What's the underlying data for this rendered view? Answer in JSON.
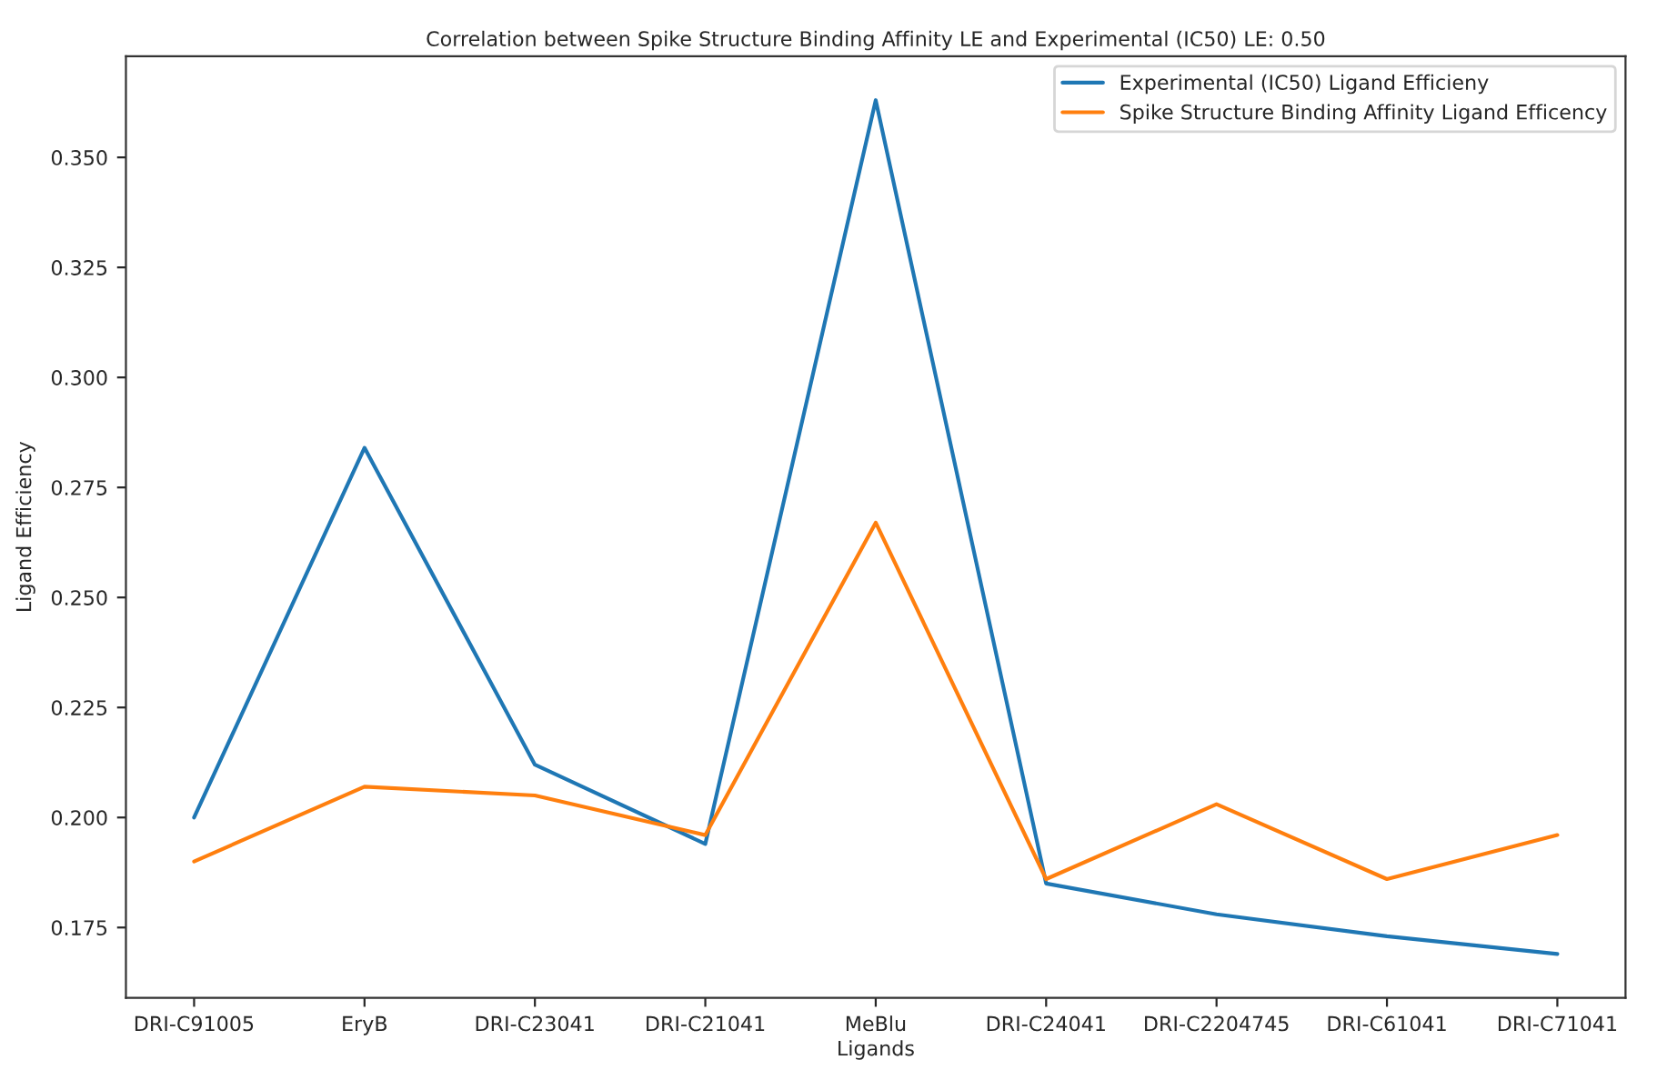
{
  "chart_data": {
    "type": "line",
    "title": "Correlation between Spike Structure Binding Affinity LE and Experimental (IC50) LE: 0.50",
    "xlabel": "Ligands",
    "ylabel": "Ligand Efficiency",
    "categories": [
      "DRI-C91005",
      "EryB",
      "DRI-C23041",
      "DRI-C21041",
      "MeBlu",
      "DRI-C24041",
      "DRI-C2204745",
      "DRI-C61041",
      "DRI-C71041"
    ],
    "series": [
      {
        "name": "Experimental (IC50) Ligand Efficieny",
        "color": "#1f77b4",
        "values": [
          0.2,
          0.284,
          0.212,
          0.194,
          0.363,
          0.185,
          0.178,
          0.173,
          0.169
        ]
      },
      {
        "name": "Spike Structure Binding Affinity Ligand Efficency",
        "color": "#ff7f0e",
        "values": [
          0.19,
          0.207,
          0.205,
          0.196,
          0.267,
          0.186,
          0.203,
          0.186,
          0.196
        ]
      }
    ],
    "ylim": [
      0.159,
      0.373
    ],
    "yticks": [
      0.175,
      {
        "value": 0.2,
        "label": "0.200"
      },
      0.225,
      {
        "value": 0.25,
        "label": "0.250"
      },
      0.275,
      {
        "value": 0.3,
        "label": "0.300"
      },
      0.325,
      {
        "value": 0.35,
        "label": "0.350"
      }
    ],
    "grid": false,
    "legend": "top right",
    "marker": "none",
    "line_style": "solid"
  }
}
